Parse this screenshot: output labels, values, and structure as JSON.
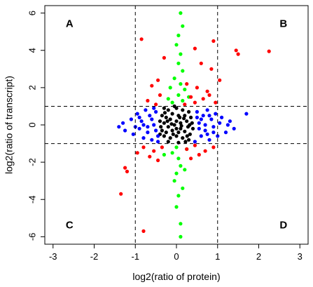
{
  "chart_data": {
    "type": "scatter",
    "xlabel": "log2(ratio of protein)",
    "ylabel": "log2(ratio of transcript)",
    "xlim": [
      -3.2,
      3.2
    ],
    "ylim": [
      -6.4,
      6.4
    ],
    "x_ticks": [
      -3,
      -2,
      -1,
      0,
      1,
      2,
      3
    ],
    "y_ticks": [
      -6,
      -4,
      -2,
      0,
      2,
      4,
      6
    ],
    "x_tick_labels": [
      "-3",
      "-2",
      "-1",
      "0",
      "1",
      "2",
      "3"
    ],
    "y_tick_labels": [
      "-6",
      "-4",
      "-2",
      "0",
      "2",
      "4",
      "6"
    ],
    "thresholds": {
      "x": [
        -1,
        1
      ],
      "y": [
        -1,
        1
      ]
    },
    "grid": false,
    "quadrant_labels": [
      {
        "text": "A",
        "x": -2.6,
        "y": 5.4
      },
      {
        "text": "B",
        "x": 2.6,
        "y": 5.4
      },
      {
        "text": "C",
        "x": -2.6,
        "y": -5.4
      },
      {
        "text": "D",
        "x": 2.6,
        "y": -5.4
      }
    ],
    "series": [
      {
        "color": "#000000",
        "points": [
          [
            -0.3,
            0.9
          ],
          [
            -0.2,
            0.8
          ],
          [
            0.0,
            0.9
          ],
          [
            0.15,
            0.8
          ],
          [
            0.3,
            0.7
          ],
          [
            -0.35,
            0.5
          ],
          [
            -0.25,
            0.4
          ],
          [
            -0.1,
            0.6
          ],
          [
            0.05,
            0.5
          ],
          [
            0.2,
            0.5
          ],
          [
            0.35,
            0.4
          ],
          [
            -0.4,
            0.2
          ],
          [
            -0.3,
            0.1
          ],
          [
            -0.15,
            0.3
          ],
          [
            0.0,
            0.2
          ],
          [
            0.1,
            0.1
          ],
          [
            0.25,
            0.2
          ],
          [
            0.38,
            0.1
          ],
          [
            -0.38,
            -0.1
          ],
          [
            -0.2,
            -0.1
          ],
          [
            -0.05,
            0.0
          ],
          [
            0.12,
            -0.05
          ],
          [
            0.28,
            -0.1
          ],
          [
            0.4,
            -0.2
          ],
          [
            -0.35,
            -0.3
          ],
          [
            -0.25,
            -0.4
          ],
          [
            -0.1,
            -0.3
          ],
          [
            0.05,
            -0.4
          ],
          [
            0.2,
            -0.35
          ],
          [
            0.33,
            -0.5
          ],
          [
            -0.3,
            -0.6
          ],
          [
            -0.15,
            -0.7
          ],
          [
            0.0,
            -0.6
          ],
          [
            0.15,
            -0.7
          ],
          [
            0.3,
            -0.8
          ],
          [
            -0.2,
            -0.9
          ],
          [
            0.05,
            -0.95
          ],
          [
            0.22,
            -0.9
          ],
          [
            -0.05,
            1.0
          ],
          [
            0.1,
            -0.2
          ],
          [
            -0.12,
            0.05
          ],
          [
            0.18,
            0.35
          ],
          [
            -0.28,
            0.65
          ],
          [
            0.26,
            -0.6
          ],
          [
            0.0,
            -0.2
          ],
          [
            -0.08,
            -0.5
          ],
          [
            0.08,
            0.4
          ],
          [
            -0.22,
            0.2
          ],
          [
            0.32,
            0.0
          ],
          [
            -0.4,
            -0.5
          ]
        ]
      },
      {
        "color": "#0000ff",
        "points": [
          [
            -1.4,
            -0.1
          ],
          [
            -1.3,
            0.1
          ],
          [
            -1.25,
            -0.3
          ],
          [
            -1.1,
            0.3
          ],
          [
            -1.05,
            -0.5
          ],
          [
            -0.95,
            0.6
          ],
          [
            -0.9,
            -0.2
          ],
          [
            -0.85,
            0.2
          ],
          [
            -0.8,
            -0.7
          ],
          [
            -0.75,
            0.8
          ],
          [
            -0.7,
            -0.4
          ],
          [
            -0.65,
            0.5
          ],
          [
            -0.6,
            -0.8
          ],
          [
            -0.55,
            0.0
          ],
          [
            -0.5,
            0.7
          ],
          [
            -0.45,
            -0.6
          ],
          [
            -0.6,
            0.3
          ],
          [
            -0.7,
            -0.1
          ],
          [
            -0.5,
            -0.3
          ],
          [
            -0.9,
            0.4
          ],
          [
            -1.0,
            -0.1
          ],
          [
            -0.8,
            0.0
          ],
          [
            -0.55,
            0.9
          ],
          [
            -0.45,
            -0.9
          ],
          [
            1.7,
            0.6
          ],
          [
            1.4,
            -0.2
          ],
          [
            1.3,
            0.2
          ],
          [
            1.2,
            -0.4
          ],
          [
            1.1,
            0.4
          ],
          [
            1.0,
            -0.6
          ],
          [
            0.95,
            0.6
          ],
          [
            0.9,
            -0.1
          ],
          [
            0.85,
            0.3
          ],
          [
            0.8,
            -0.8
          ],
          [
            0.75,
            0.8
          ],
          [
            0.7,
            -0.3
          ],
          [
            0.65,
            0.5
          ],
          [
            0.6,
            -0.6
          ],
          [
            0.55,
            0.1
          ],
          [
            0.5,
            0.7
          ],
          [
            0.45,
            -0.9
          ],
          [
            0.6,
            0.3
          ],
          [
            0.7,
            0.0
          ],
          [
            0.8,
            0.5
          ],
          [
            0.9,
            -0.4
          ],
          [
            1.05,
            0.1
          ],
          [
            0.55,
            -0.2
          ],
          [
            0.5,
            0.4
          ],
          [
            1.25,
            0.0
          ],
          [
            0.75,
            -0.5
          ]
        ]
      },
      {
        "color": "#00ff00",
        "points": [
          [
            0.1,
            6.0
          ],
          [
            0.15,
            5.3
          ],
          [
            0.05,
            4.8
          ],
          [
            0.0,
            4.3
          ],
          [
            0.1,
            3.8
          ],
          [
            0.05,
            3.3
          ],
          [
            0.15,
            2.9
          ],
          [
            -0.05,
            2.5
          ],
          [
            0.1,
            2.2
          ],
          [
            0.2,
            1.9
          ],
          [
            0.05,
            1.6
          ],
          [
            0.15,
            1.3
          ],
          [
            -0.1,
            1.2
          ],
          [
            0.0,
            -1.2
          ],
          [
            -0.1,
            -1.5
          ],
          [
            0.05,
            -1.8
          ],
          [
            0.1,
            -2.2
          ],
          [
            0.0,
            -2.6
          ],
          [
            -0.05,
            -3.0
          ],
          [
            0.15,
            -3.4
          ],
          [
            0.05,
            -3.8
          ],
          [
            0.0,
            -4.4
          ],
          [
            0.1,
            -5.3
          ],
          [
            0.1,
            -6.0
          ],
          [
            -0.2,
            1.4
          ],
          [
            0.25,
            -1.3
          ],
          [
            -0.3,
            -1.6
          ],
          [
            0.3,
            1.5
          ],
          [
            -0.15,
            2.0
          ],
          [
            0.2,
            -2.4
          ]
        ]
      },
      {
        "color": "#ff0000",
        "points": [
          [
            -0.85,
            4.6
          ],
          [
            0.45,
            4.1
          ],
          [
            0.9,
            4.5
          ],
          [
            1.45,
            4.0
          ],
          [
            1.5,
            3.8
          ],
          [
            2.25,
            3.95
          ],
          [
            -0.3,
            3.6
          ],
          [
            0.6,
            3.3
          ],
          [
            0.85,
            3.0
          ],
          [
            1.05,
            2.4
          ],
          [
            -0.6,
            2.1
          ],
          [
            -0.45,
            2.4
          ],
          [
            0.25,
            2.2
          ],
          [
            0.5,
            2.0
          ],
          [
            0.75,
            1.8
          ],
          [
            -0.4,
            1.6
          ],
          [
            0.35,
            1.5
          ],
          [
            0.65,
            1.4
          ],
          [
            0.95,
            1.2
          ],
          [
            -0.7,
            1.3
          ],
          [
            -0.5,
            1.1
          ],
          [
            0.2,
            1.1
          ],
          [
            0.45,
            1.2
          ],
          [
            0.8,
            1.6
          ],
          [
            -0.8,
            -1.2
          ],
          [
            -0.55,
            -1.4
          ],
          [
            -0.35,
            -1.2
          ],
          [
            0.25,
            -1.3
          ],
          [
            0.45,
            -1.1
          ],
          [
            0.7,
            -1.4
          ],
          [
            0.9,
            -1.2
          ],
          [
            -0.65,
            -1.7
          ],
          [
            0.55,
            -1.6
          ],
          [
            -0.95,
            -1.5
          ],
          [
            -0.45,
            -1.9
          ],
          [
            -1.25,
            -2.3
          ],
          [
            -1.2,
            -2.5
          ],
          [
            -1.35,
            -3.7
          ],
          [
            -0.8,
            -5.7
          ],
          [
            0.35,
            -1.8
          ]
        ]
      }
    ]
  }
}
